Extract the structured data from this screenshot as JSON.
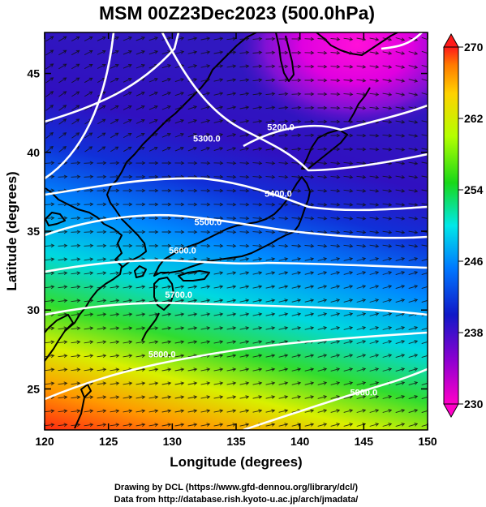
{
  "title": "MSM 00Z23Dec2023 (500.0hPa)",
  "map": {
    "xlabel": "Longitude (degrees)",
    "ylabel": "Latitude  (degrees)",
    "lon_range": [
      120,
      150
    ],
    "lat_range": [
      22.4,
      47.6
    ],
    "lon_ticks": [
      "120",
      "125",
      "130",
      "135",
      "140",
      "145",
      "150"
    ],
    "lat_ticks": [
      "25",
      "30",
      "35",
      "40",
      "45"
    ]
  },
  "colorbar": {
    "range": [
      230,
      270
    ],
    "ticks": [
      "270",
      "262",
      "254",
      "246",
      "238",
      "230"
    ],
    "colors": [
      "#ff1a1a",
      "#ff7a00",
      "#ffd200",
      "#b4ff00",
      "#18d818",
      "#00e8e8",
      "#0078ff",
      "#1018c8",
      "#9000d0",
      "#ff00c8"
    ]
  },
  "contours": [
    {
      "label": "5200.0",
      "lon": 138.5,
      "lat": 41.6
    },
    {
      "label": "5300.0",
      "lon": 132.7,
      "lat": 40.9
    },
    {
      "label": "5400.0",
      "lon": 138.3,
      "lat": 37.4
    },
    {
      "label": "5500.0",
      "lon": 132.8,
      "lat": 35.6
    },
    {
      "label": "5600.0",
      "lon": 130.8,
      "lat": 33.8
    },
    {
      "label": "5700.0",
      "lon": 130.5,
      "lat": 31.0
    },
    {
      "label": "5800.0",
      "lon": 129.2,
      "lat": 27.2
    },
    {
      "label": "5900.0",
      "lon": 145.0,
      "lat": 24.8
    }
  ],
  "credits": {
    "line1": "Drawing by DCL (https://www.gfd-dennou.org/library/dcl/)",
    "line2": "Data from http://database.rish.kyoto-u.ac.jp/arch/jmadata/"
  }
}
